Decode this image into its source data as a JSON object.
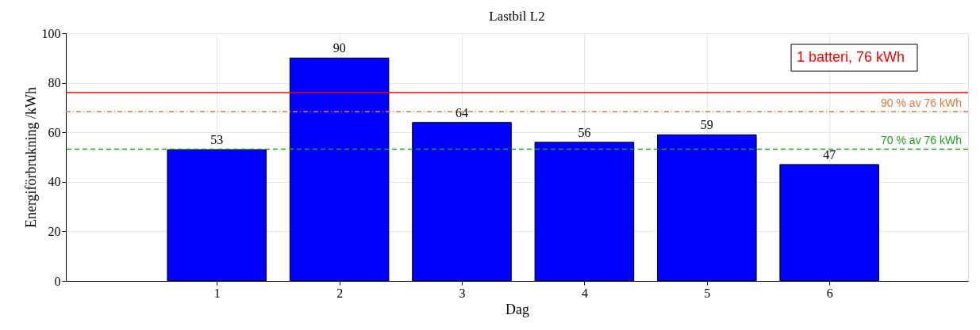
{
  "chart_data": {
    "type": "bar",
    "title": "Lastbil L2",
    "xlabel": "Dag",
    "ylabel": "Energiförbrukning /kWh",
    "x": [
      1,
      2,
      3,
      4,
      5,
      6
    ],
    "values": [
      53,
      90,
      64,
      56,
      59,
      47
    ],
    "color": "#0000ff",
    "xlim": [
      -0.2,
      7.1
    ],
    "xticks": [
      1,
      2,
      3,
      4,
      5,
      6
    ],
    "ylim": [
      0,
      100
    ],
    "yticks": [
      0,
      20,
      40,
      60,
      80,
      100
    ],
    "grid": true,
    "data_labels": true,
    "ref_lines": [
      {
        "axis": "y",
        "value": 76,
        "label": "1 batteri, 76 kWh",
        "color": "#ff0000",
        "line_style": "solid"
      },
      {
        "axis": "y",
        "value": 68.4,
        "label": "90 % av 76 kWh",
        "color": "#e8773a",
        "line_style": "dotted"
      },
      {
        "axis": "y",
        "value": 53.2,
        "label": "70 % av 76 kWh",
        "color": "#19a319",
        "line_style": "dashed"
      }
    ]
  }
}
